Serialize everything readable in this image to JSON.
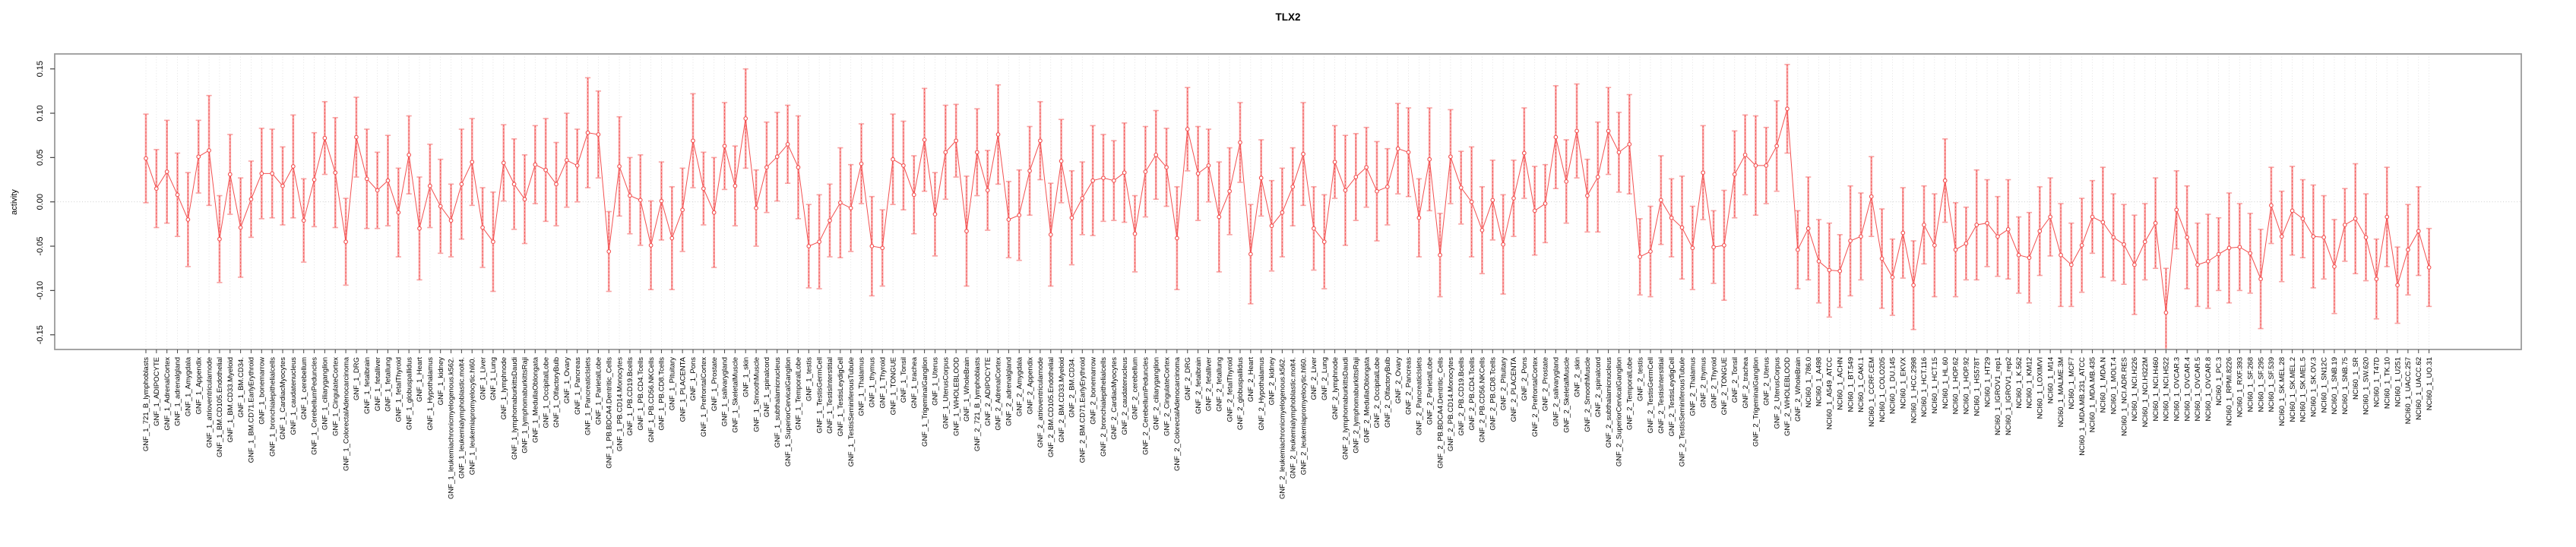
{
  "colors": {
    "point": "#f35050",
    "line": "#f35050",
    "error_bar": "#f8a2a2",
    "grid": "#dcdcdc",
    "zero_line": "#c8c8c8",
    "box_border": "#9b9b9b",
    "tick": "#444444",
    "text": "#000000"
  },
  "chart_data": {
    "type": "scatter",
    "title": "TLX2",
    "xlabel": "",
    "ylabel": "activity",
    "ylim": [
      -0.175,
      0.165
    ],
    "ytick_values": [
      0.15,
      0.1,
      0.05,
      0.0,
      -0.05,
      -0.1,
      -0.15
    ],
    "ytick_labels": [
      "0.15",
      "0.10",
      "0.05",
      "0.00",
      "-0.05",
      "-0.10",
      "-0.15"
    ],
    "grid": "vertical dotted line per category; dotted horizontal line at 0",
    "legend": "none",
    "error_bars": true,
    "categories": [
      "GNF_1_721_B_lymphoblasts",
      "GNF_1_ADIPOCYTE",
      "GNF_1_AdrenalCortex",
      "GNF_1_adrenalgland",
      "GNF_1_Amygdala",
      "GNF_1_Appendix",
      "GNF_1_atrioventricularnode",
      "GNF_1_BM.CD105.Endothelial",
      "GNF_1_BM.CD33.Myeloid",
      "GNF_1_BM.CD34.",
      "GNF_1_BM.CD71.EarlyErythroid",
      "GNF_1_bonemarrow",
      "GNF_1_bronchialepithelialcells",
      "GNF_1_CardiacMyocytes",
      "GNF_1_caudatenucleus",
      "GNF_1_cerebellum",
      "GNF_1_CerebellumPeduncles",
      "GNF_1_ciliaryganglion",
      "GNF_1_CingulateCortex",
      "GNF_1_ColorectalAdenocarcinoma",
      "GNF_1_DRG",
      "GNF_1_fetalbrain",
      "GNF_1_fetalliver",
      "GNF_1_fetallung",
      "GNF_1_fetalThyroid",
      "GNF_1_globuspallidus",
      "GNF_1_Heart",
      "GNF_1_Hypothalamus",
      "GNF_1_kidney",
      "GNF_1_leukemiachronicmyelogenous.k562.",
      "GNF_1_leukemialymphoblastic.molt4.",
      "GNF_1_leukemiapromyelocytic.hl60.",
      "GNF_1_Liver",
      "GNF_1_Lung",
      "GNF_1_lymphnode",
      "GNF_1_lymphomaburkittsDaudi",
      "GNF_1_lymphomaburkittsRaji",
      "GNF_1_MedullaOblongata",
      "GNF_1_OccipitalLobe",
      "GNF_1_OlfactoryBulb",
      "GNF_1_Ovary",
      "GNF_1_Pancreas",
      "GNF_1_PancreaticIslets",
      "GNF_1_ParietalLobe",
      "GNF_1_PB.BDCA4.Dentritic_Cells",
      "GNF_1_PB.CD14.Monocytes",
      "GNF_1_PB.CD19.Bcells",
      "GNF_1_PB.CD4.Tcells",
      "GNF_1_PB.CD56.NKCells",
      "GNF_1_PB.CD8.Tcells",
      "GNF_1_Pituitary",
      "GNF_1_PLACENTA",
      "GNF_1_Pons",
      "GNF_1_PrefrontalCortex",
      "GNF_1_Prostate",
      "GNF_1_salivarygland",
      "GNF_1_SkeletalMuscle",
      "GNF_1_skin",
      "GNF_1_SmoothMuscle",
      "GNF_1_spinalcord",
      "GNF_1_subthalamicnucleus",
      "GNF_1_SuperiorCervicalGanglion",
      "GNF_1_TemporalLobe",
      "GNF_1_testis",
      "GNF_1_TestisGermCell",
      "GNF_1_TestisInterstitial",
      "GNF_1_TestisLeydigCell",
      "GNF_1_TestisSeminiferousTubule",
      "GNF_1_Thalamus",
      "GNF_1_thymus",
      "GNF_1_Thyroid",
      "GNF_1_TONGUE",
      "GNF_1_Tonsil",
      "GNF_1_trachea",
      "GNF_1_TrigeminalGanglion",
      "GNF_1_Uterus",
      "GNF_1_UterusCorpus",
      "GNF_1_WHOLEBLOOD",
      "GNF_1_WholeBrain",
      "GNF_2_721_B_lymphoblasts",
      "GNF_2_ADIPOCYTE",
      "GNF_2_AdrenalCortex",
      "GNF_2_adrenalgland",
      "GNF_2_Amygdala",
      "GNF_2_Appendix",
      "GNF_2_atrioventricularnode",
      "GNF_2_BM.CD105.Endothelial",
      "GNF_2_BM.CD33.Myeloid",
      "GNF_2_BM.CD34.",
      "GNF_2_BM.CD71.EarlyErythroid",
      "GNF_2_bonemarrow",
      "GNF_2_bronchialepithelialcells",
      "GNF_2_CardiacMyocytes",
      "GNF_2_caudatenucleus",
      "GNF_2_cerebellum",
      "GNF_2_CerebellumPeduncles",
      "GNF_2_ciliaryganglion",
      "GNF_2_CingulateCortex",
      "GNF_2_ColorectalAdenocarcinoma",
      "GNF_2_DRG",
      "GNF_2_fetalbrain",
      "GNF_2_fetalliver",
      "GNF_2_fetallung",
      "GNF_2_fetalThyroid",
      "GNF_2_globuspallidus",
      "GNF_2_Heart",
      "GNF_2_Hypothalamus",
      "GNF_2_kidney",
      "GNF_2_leukemiachronicmyelogenous.k562.",
      "GNF_2_leukemialymphoblastic.molt4.",
      "GNF_2_leukemiapromyelocytic.hl60.",
      "GNF_2_Liver",
      "GNF_2_Lung",
      "GNF_2_lymphnode",
      "GNF_2_lymphomaburkittsDaudi",
      "GNF_2_lymphomaburkittsRaji",
      "GNF_2_MedullaOblongata",
      "GNF_2_OccipitalLobe",
      "GNF_2_OlfactoryBulb",
      "GNF_2_Ovary",
      "GNF_2_Pancreas",
      "GNF_2_PancreaticIslets",
      "GNF_2_ParietalLobe",
      "GNF_2_PB.BDCA4.Dentritic_Cells",
      "GNF_2_PB.CD14.Monocytes",
      "GNF_2_PB.CD19.Bcells",
      "GNF_2_PB.CD4.Tcells",
      "GNF_2_PB.CD56.NKCells",
      "GNF_2_PB.CD8.Tcells",
      "GNF_2_Pituitary",
      "GNF_2_PLACENTA",
      "GNF_2_Pons",
      "GNF_2_PrefrontalCortex",
      "GNF_2_Prostate",
      "GNF_2_salivarygland",
      "GNF_2_SkeletalMuscle",
      "GNF_2_skin",
      "GNF_2_SmoothMuscle",
      "GNF_2_spinalcord",
      "GNF_2_subthalamicnucleus",
      "GNF_2_SuperiorCervicalGanglion",
      "GNF_2_TemporalLobe",
      "GNF_2_testis",
      "GNF_2_TestisGermCell",
      "GNF_2_TestisInterstitial",
      "GNF_2_TestisLeydigCell",
      "GNF_2_TestisSeminiferousTubule",
      "GNF_2_Thalamus",
      "GNF_2_thymus",
      "GNF_2_Thyroid",
      "GNF_2_TONGUE",
      "GNF_2_Tonsil",
      "GNF_2_trachea",
      "GNF_2_TrigeminalGanglion",
      "GNF_2_Uterus",
      "GNF_2_UterusCorpus",
      "GNF_2_WHOLEBLOOD",
      "GNF_2_WholeBrain",
      "NCI60_1_786.0",
      "NCI60_1_A498",
      "NCI60_1_A549_ATCC",
      "NCI60_1_ACHN",
      "NCI60_1_BT.549",
      "NCI60_1_CAKI.1",
      "NCI60_1_CCRF.CEM",
      "NCI60_1_COLO205",
      "NCI60_1_DU.145",
      "NCI60_1_EKVX",
      "NCI60_1_HCC.2998",
      "NCI60_1_HCT.116",
      "NCI60_1_HCT.15",
      "NCI60_1_HL.60",
      "NCI60_1_HOP.62",
      "NCI60_1_HOP.92",
      "NCI60_1_HS578T",
      "NCI60_1_HT29",
      "NCI60_1_IGROV1_rep1",
      "NCI60_1_IGROV1_rep2",
      "NCI60_1_K.562",
      "NCI60_1_KM12",
      "NCI60_1_LOXIMVI",
      "NCI60_1_M14",
      "NCI60_1_MALME.3M",
      "NCI60_1_MCF7",
      "NCI60_1_MDA.MB.231_ATCC",
      "NCI60_1_MDA.MB.435",
      "NCI60_1_MDA.N",
      "NCI60_1_MOLT.4",
      "NCI60_1_NCI.ADR.RES",
      "NCI60_1_NCI.H226",
      "NCI60_1_NCI.H322M",
      "NCI60_1_NCI.H460",
      "NCI60_1_NCI.H522",
      "NCI60_1_OVCAR.3",
      "NCI60_1_OVCAR.4",
      "NCI60_1_OVCAR.5",
      "NCI60_1_OVCAR.8",
      "NCI60_1_PC.3",
      "NCI60_1_RPMI.8226",
      "NCI60_1_RXF.393",
      "NCI60_1_SF.268",
      "NCI60_1_SF.295",
      "NCI60_1_SF.539",
      "NCI60_1_SK.MEL.28",
      "NCI60_1_SK.MEL.2",
      "NCI60_1_SK.MEL.5",
      "NCI60_1_SK.OV.3",
      "NCI60_1_SN12C",
      "NCI60_1_SNB.19",
      "NCI60_1_SNB.75",
      "NCI60_1_SR",
      "NCI60_1_SW.620",
      "NCI60_1_T47D",
      "NCI60_1_TK.10",
      "NCI60_1_U251",
      "NCI60_1_UACC.257",
      "NCI60_1_UACC.62",
      "NCI60_1_UO.31"
    ],
    "values": [
      0.049,
      0.015,
      0.034,
      0.008,
      -0.02,
      0.051,
      0.058,
      -0.042,
      0.031,
      -0.029,
      0.003,
      0.032,
      0.032,
      0.018,
      0.04,
      -0.021,
      0.025,
      0.072,
      0.033,
      -0.045,
      0.073,
      0.026,
      0.013,
      0.024,
      -0.012,
      0.053,
      -0.03,
      0.018,
      -0.005,
      -0.021,
      0.02,
      0.045,
      -0.029,
      -0.045,
      0.044,
      0.02,
      0.003,
      0.042,
      0.036,
      0.02,
      0.047,
      0.041,
      0.078,
      0.076,
      -0.056,
      0.04,
      0.007,
      0.002,
      -0.049,
      0.001,
      -0.041,
      -0.009,
      0.069,
      0.015,
      -0.012,
      0.063,
      0.018,
      0.094,
      -0.007,
      0.039,
      0.051,
      0.065,
      0.039,
      -0.05,
      -0.045,
      -0.021,
      -0.001,
      -0.007,
      0.043,
      -0.05,
      -0.052,
      0.048,
      0.041,
      0.008,
      0.07,
      -0.014,
      0.056,
      0.069,
      -0.033,
      0.056,
      0.013,
      0.076,
      -0.02,
      -0.015,
      0.035,
      0.069,
      -0.037,
      0.046,
      -0.018,
      0.004,
      0.024,
      0.027,
      0.024,
      0.033,
      -0.036,
      0.034,
      0.053,
      0.039,
      -0.041,
      0.082,
      0.032,
      0.041,
      -0.017,
      0.012,
      0.067,
      -0.059,
      0.027,
      -0.027,
      -0.012,
      0.017,
      0.054,
      -0.03,
      -0.045,
      0.045,
      0.013,
      0.028,
      0.039,
      0.012,
      0.017,
      0.06,
      0.056,
      -0.018,
      0.048,
      -0.06,
      0.051,
      0.016,
      0.0,
      -0.032,
      0.002,
      -0.048,
      0.004,
      0.055,
      -0.01,
      -0.002,
      0.073,
      0.023,
      0.08,
      0.007,
      0.028,
      0.08,
      0.056,
      0.065,
      -0.062,
      -0.056,
      0.002,
      -0.018,
      -0.029,
      -0.052,
      0.033,
      -0.051,
      -0.049,
      0.031,
      0.053,
      0.041,
      0.041,
      0.063,
      0.105,
      -0.054,
      -0.03,
      -0.067,
      -0.077,
      -0.078,
      -0.044,
      -0.039,
      0.006,
      -0.064,
      -0.085,
      -0.035,
      -0.094,
      -0.026,
      -0.049,
      0.024,
      -0.054,
      -0.047,
      -0.026,
      -0.024,
      -0.039,
      -0.031,
      -0.06,
      -0.063,
      -0.033,
      -0.017,
      -0.06,
      -0.071,
      -0.049,
      -0.017,
      -0.023,
      -0.04,
      -0.048,
      -0.071,
      -0.045,
      -0.024,
      -0.125,
      -0.009,
      -0.04,
      -0.071,
      -0.067,
      -0.059,
      -0.052,
      -0.051,
      -0.058,
      -0.087,
      -0.004,
      -0.039,
      -0.01,
      -0.019,
      -0.039,
      -0.04,
      -0.073,
      -0.026,
      -0.019,
      -0.04,
      -0.087,
      -0.017,
      -0.094,
      -0.054,
      -0.033,
      -0.074
    ],
    "errors": [
      0.05,
      0.044,
      0.058,
      0.047,
      0.053,
      0.041,
      0.062,
      0.049,
      0.045,
      0.056,
      0.043,
      0.051,
      0.05,
      0.044,
      0.058,
      0.047,
      0.053,
      0.041,
      0.062,
      0.049,
      0.045,
      0.056,
      0.043,
      0.051,
      0.05,
      0.044,
      0.058,
      0.047,
      0.053,
      0.041,
      0.062,
      0.049,
      0.045,
      0.056,
      0.043,
      0.051,
      0.05,
      0.044,
      0.058,
      0.047,
      0.053,
      0.041,
      0.062,
      0.049,
      0.045,
      0.056,
      0.043,
      0.051,
      0.05,
      0.044,
      0.058,
      0.047,
      0.053,
      0.041,
      0.062,
      0.049,
      0.045,
      0.056,
      0.043,
      0.051,
      0.05,
      0.044,
      0.058,
      0.047,
      0.053,
      0.041,
      0.062,
      0.049,
      0.045,
      0.056,
      0.043,
      0.051,
      0.05,
      0.044,
      0.058,
      0.047,
      0.053,
      0.041,
      0.062,
      0.049,
      0.045,
      0.056,
      0.043,
      0.051,
      0.05,
      0.044,
      0.058,
      0.047,
      0.053,
      0.041,
      0.062,
      0.049,
      0.045,
      0.056,
      0.043,
      0.051,
      0.05,
      0.044,
      0.058,
      0.047,
      0.053,
      0.041,
      0.062,
      0.049,
      0.045,
      0.056,
      0.043,
      0.051,
      0.05,
      0.044,
      0.058,
      0.047,
      0.053,
      0.041,
      0.062,
      0.049,
      0.045,
      0.056,
      0.043,
      0.051,
      0.05,
      0.044,
      0.058,
      0.047,
      0.053,
      0.041,
      0.062,
      0.049,
      0.045,
      0.056,
      0.043,
      0.051,
      0.05,
      0.044,
      0.058,
      0.047,
      0.053,
      0.041,
      0.062,
      0.049,
      0.045,
      0.056,
      0.043,
      0.051,
      0.05,
      0.044,
      0.058,
      0.047,
      0.053,
      0.041,
      0.062,
      0.049,
      0.045,
      0.056,
      0.043,
      0.051,
      0.05,
      0.044,
      0.058,
      0.047,
      0.053,
      0.041,
      0.062,
      0.049,
      0.045,
      0.056,
      0.043,
      0.051,
      0.05,
      0.044,
      0.058,
      0.047,
      0.053,
      0.041,
      0.062,
      0.049,
      0.045,
      0.056,
      0.043,
      0.051,
      0.05,
      0.044,
      0.058,
      0.047,
      0.053,
      0.041,
      0.062,
      0.049,
      0.045,
      0.056,
      0.043,
      0.051,
      0.05,
      0.044,
      0.058,
      0.047,
      0.053,
      0.041,
      0.062,
      0.049,
      0.045,
      0.056,
      0.043,
      0.051,
      0.05,
      0.044,
      0.058,
      0.047,
      0.053,
      0.041,
      0.062,
      0.049,
      0.045,
      0.056,
      0.043,
      0.051,
      0.05,
      0.044
    ]
  }
}
